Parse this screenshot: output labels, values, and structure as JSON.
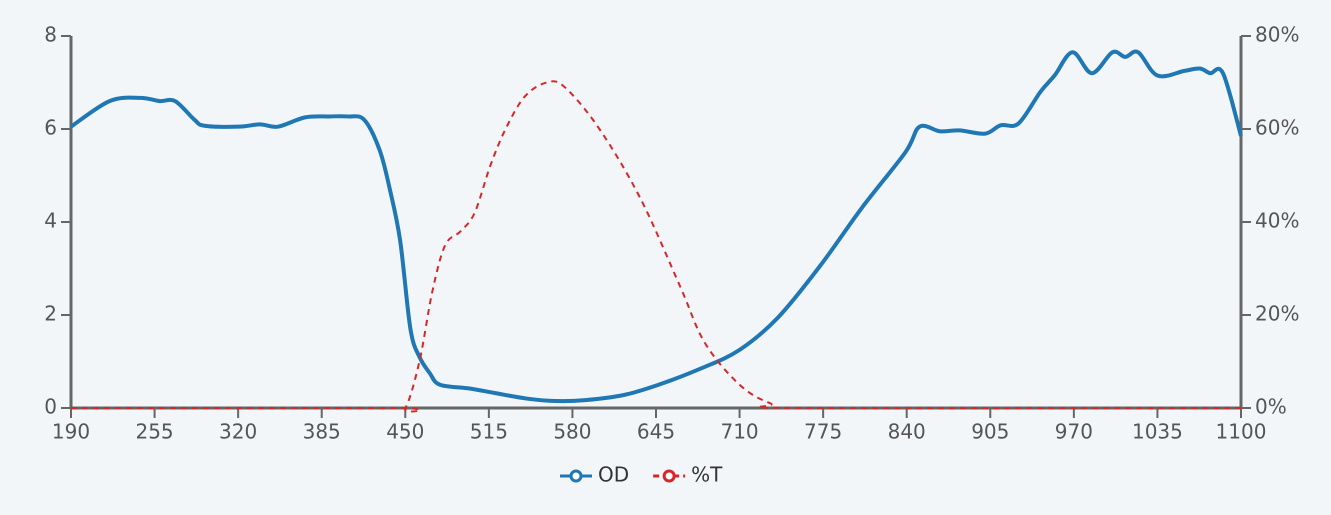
{
  "chart_data": {
    "type": "line",
    "xlim": [
      190,
      1100
    ],
    "xticks": [
      190,
      255,
      320,
      385,
      450,
      515,
      580,
      645,
      710,
      775,
      840,
      905,
      970,
      1035,
      1100
    ],
    "ylim": [
      0,
      8
    ],
    "yticks": [
      0,
      2,
      4,
      6,
      8
    ],
    "y2lim": [
      0,
      80
    ],
    "y2ticks": [
      {
        "value": 0,
        "label": "0%"
      },
      {
        "value": 20,
        "label": "20%"
      },
      {
        "value": 40,
        "label": "40%"
      },
      {
        "value": 60,
        "label": "60%"
      },
      {
        "value": 80,
        "label": "80%"
      }
    ],
    "series": [
      {
        "name": "OD",
        "color": "#1f77b4",
        "dashed": false,
        "x": [
          190,
          220,
          244,
          259,
          271,
          286,
          294,
          321,
          337,
          351,
          372,
          391,
          405,
          418,
          430,
          438,
          446,
          454,
          461,
          469,
          477,
          500,
          520,
          545,
          567,
          590,
          620,
          647,
          680,
          710,
          740,
          773,
          805,
          839,
          850,
          866,
          881,
          901,
          913,
          927,
          944,
          955,
          969,
          984,
          1000,
          1010,
          1020,
          1035,
          1056,
          1068,
          1076,
          1086,
          1100
        ],
        "values": [
          6.05,
          6.6,
          6.67,
          6.6,
          6.6,
          6.2,
          6.07,
          6.05,
          6.1,
          6.05,
          6.25,
          6.27,
          6.27,
          6.2,
          5.55,
          4.7,
          3.6,
          1.7,
          1.1,
          0.75,
          0.5,
          0.42,
          0.32,
          0.2,
          0.15,
          0.17,
          0.28,
          0.5,
          0.85,
          1.25,
          1.95,
          3.07,
          4.3,
          5.5,
          6.05,
          5.95,
          5.97,
          5.9,
          6.08,
          6.12,
          6.8,
          7.15,
          7.65,
          7.2,
          7.65,
          7.55,
          7.65,
          7.15,
          7.25,
          7.3,
          7.2,
          7.2,
          5.85
        ]
      },
      {
        "name": "%T",
        "color": "#d62728",
        "dashed": true,
        "axis": "y2",
        "x": [
          190,
          440,
          450,
          461,
          471,
          481,
          493,
          504,
          516,
          528,
          543,
          560,
          574,
          601,
          633,
          664,
          683,
          710,
          734,
          757,
          1100
        ],
        "values": [
          0,
          0,
          0,
          10,
          25,
          35,
          38,
          42,
          52,
          60,
          67,
          70,
          69,
          60,
          45,
          26,
          14,
          5,
          1,
          0,
          0
        ]
      }
    ]
  }
}
